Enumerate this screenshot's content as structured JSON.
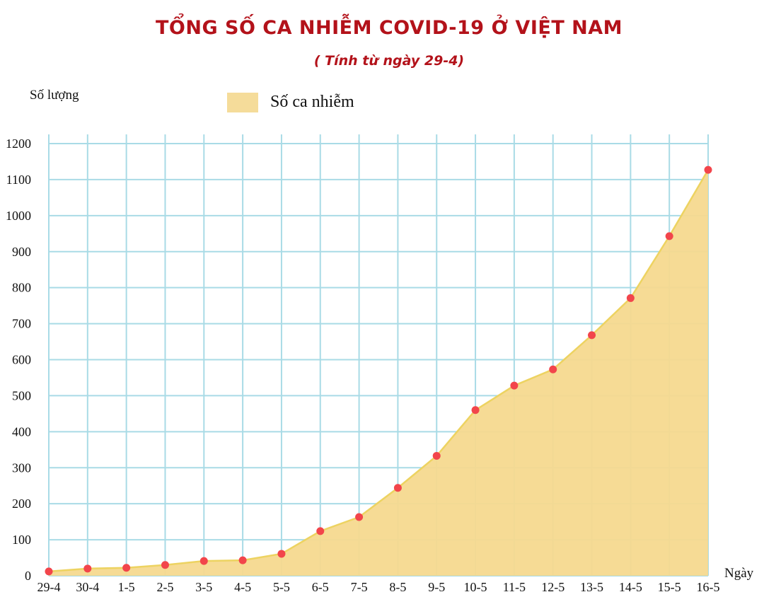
{
  "title": "TỔNG SỐ CA NHIỄM COVID-19 Ở VIỆT NAM",
  "subtitle": "( Tính từ ngày 29-4)",
  "colors": {
    "title": "#b3121a",
    "area_fill": "#f5d98f",
    "area_line": "#edd361",
    "point": "#f2454b",
    "grid": "#a9dbe6"
  },
  "chart_data": {
    "type": "area",
    "ylabel": "Số lượng",
    "xlabel": "Ngày",
    "legend": "top-center",
    "grid": true,
    "ylim": [
      0,
      1200
    ],
    "yticks": [
      0,
      100,
      200,
      300,
      400,
      500,
      600,
      700,
      800,
      900,
      1000,
      1100,
      1200
    ],
    "categories": [
      "29-4",
      "30-4",
      "1-5",
      "2-5",
      "3-5",
      "4-5",
      "5-5",
      "6-5",
      "7-5",
      "8-5",
      "9-5",
      "10-5",
      "11-5",
      "12-5",
      "13-5",
      "14-5",
      "15-5",
      "16-5"
    ],
    "series": [
      {
        "name": "Số ca nhiễm",
        "values": [
          12,
          20,
          22,
          30,
          41,
          43,
          61,
          124,
          163,
          244,
          333,
          460,
          528,
          573,
          668,
          771,
          943,
          1127
        ]
      }
    ]
  }
}
